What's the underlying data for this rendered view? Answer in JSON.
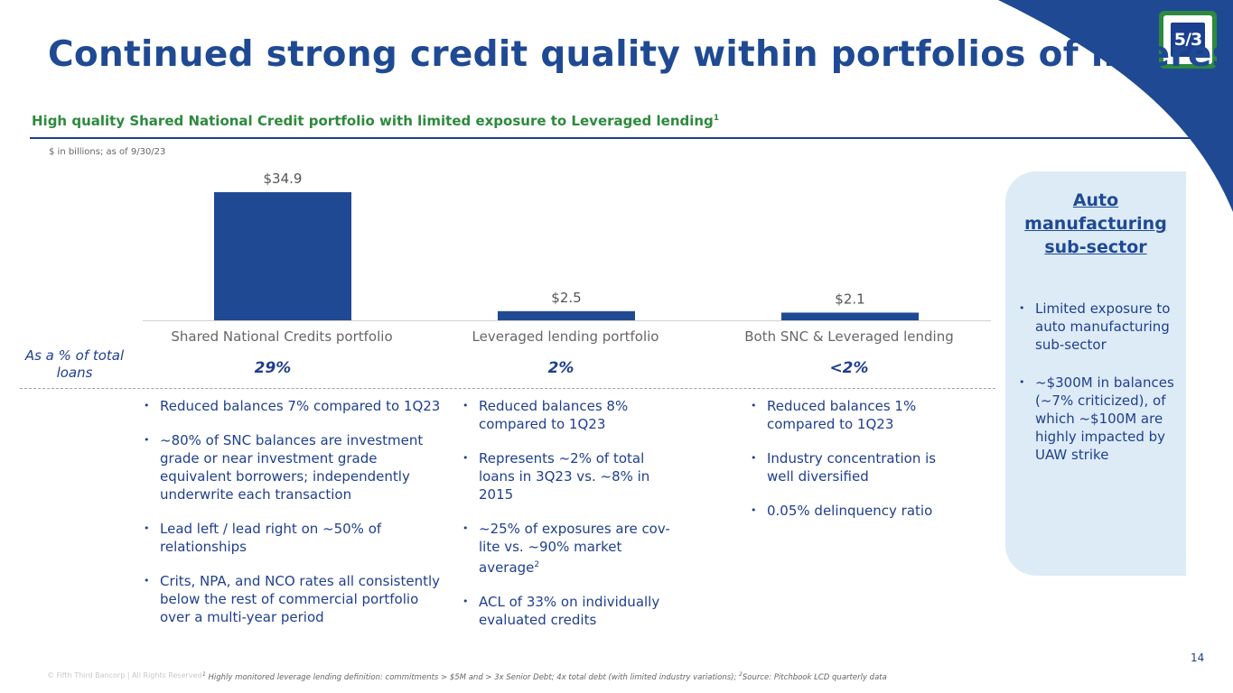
{
  "title": "Continued strong credit quality within portfolios of interest",
  "logo_text": "5/3",
  "subtitle": "High quality Shared National Credit portfolio with limited exposure to Leveraged lending",
  "subtitle_sup": "1",
  "units_note": "$ in billions; as of 9/30/23",
  "colors": {
    "bar": "#1f4a93",
    "accent_green": "#2d8a3e",
    "panel_bg": "#ddebf7",
    "corner": "#1f4a93"
  },
  "chart_data": {
    "type": "bar",
    "categories": [
      "Shared National Credits portfolio",
      "Leveraged lending portfolio",
      "Both SNC & Leveraged lending"
    ],
    "values": [
      34.9,
      2.5,
      2.1
    ],
    "data_labels": [
      "$34.9",
      "$2.5",
      "$2.1"
    ],
    "ylim": [
      0,
      34.9
    ],
    "title": "",
    "xlabel": "",
    "ylabel": ""
  },
  "pct_row_label": "As a % of total loans",
  "pct_values": [
    "29%",
    "2%",
    "<2%"
  ],
  "columns": [
    {
      "bullets": [
        "Reduced balances 7% compared to 1Q23",
        "~80% of SNC balances are investment grade or near investment grade equivalent borrowers; independently underwrite each transaction",
        "Lead left / lead right on ~50% of relationships",
        "Crits, NPA, and NCO rates all consistently below the rest of commercial portfolio over a multi-year period"
      ]
    },
    {
      "bullets": [
        "Reduced balances 8% compared to 1Q23",
        "Represents ~2% of total loans in 3Q23 vs. ~8% in 2015",
        "~25% of exposures are cov-lite vs. ~90% market average",
        "ACL of 33% on individually evaluated credits"
      ],
      "bullet2_sup": "2"
    },
    {
      "bullets": [
        "Reduced balances 1% compared to 1Q23",
        "Industry concentration is well diversified",
        "0.05% delinquency ratio"
      ]
    }
  ],
  "panel": {
    "title": "Auto manufacturing sub-sector",
    "bullets": [
      "Limited exposure to auto manufacturing sub-sector",
      "~$300M in balances (~7% criticized), of which ~$100M are highly impacted by UAW strike"
    ]
  },
  "footer_copyright": "© Fifth Third Bancorp | All Rights Reserved",
  "footnote_sup1": "1",
  "footnote_part1": " Highly monitored leverage lending definition: commitments > $5M and > 3x Senior Debt; 4x total debt (with limited industry variations); ",
  "footnote_sup2": "2",
  "footnote_part2": "Source: Pitchbook LCD quarterly data",
  "page_number": "14"
}
